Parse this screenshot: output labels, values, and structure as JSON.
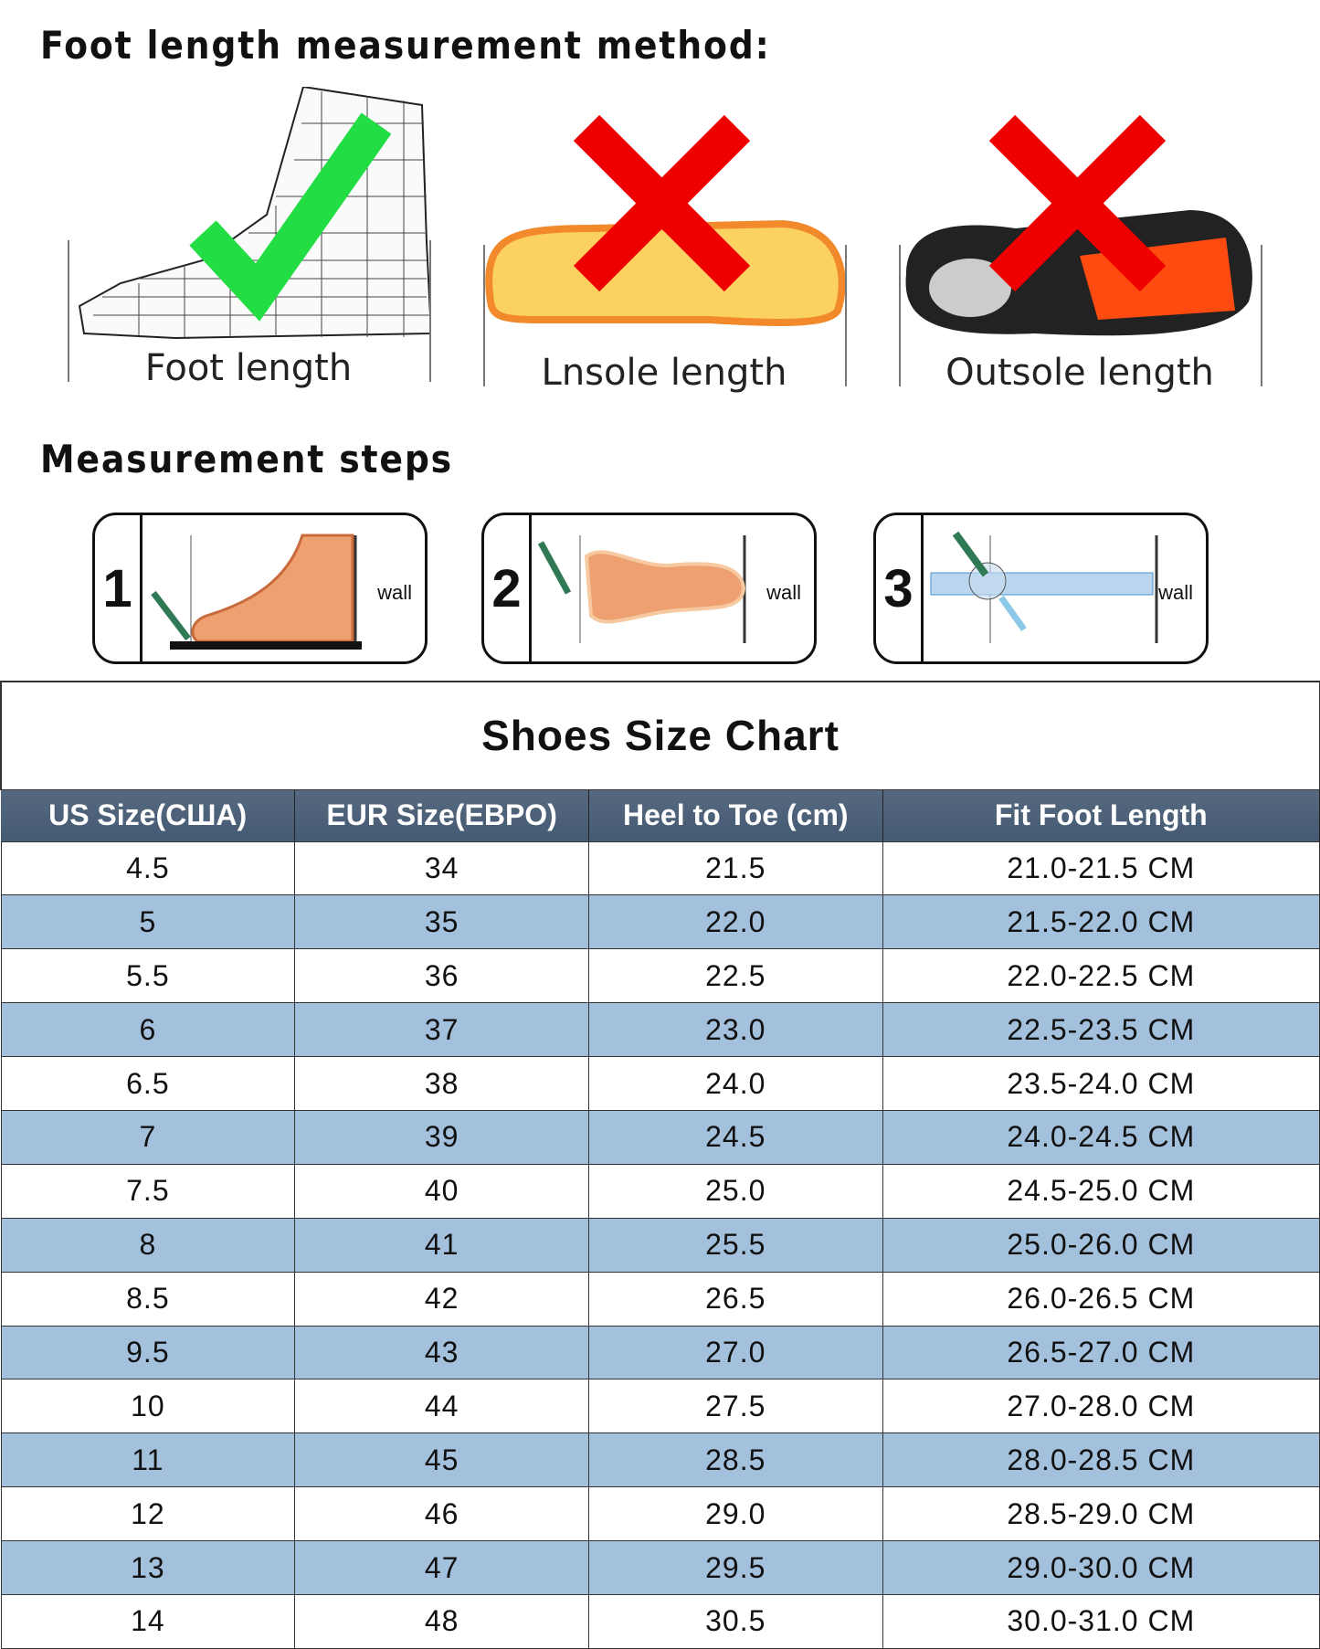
{
  "method_title": "Foot length measurement method:",
  "methods": [
    {
      "label": "Foot length",
      "mark": "check-icon",
      "color": "#22dd44"
    },
    {
      "label": "Lnsole length",
      "mark": "cross-icon",
      "color": "#ee0000"
    },
    {
      "label": "Outsole length",
      "mark": "cross-icon",
      "color": "#ee0000"
    }
  ],
  "steps_title": "Measurement steps",
  "steps": [
    {
      "num": "1",
      "wall": "wall"
    },
    {
      "num": "2",
      "wall": "wall"
    },
    {
      "num": "3",
      "wall": "wall"
    }
  ],
  "table": {
    "title": "Shoes Size Chart",
    "headers": [
      "US Size(СШA)",
      "EUR Size(EBPO)",
      "Heel to Toe (cm)",
      "Fit Foot Length"
    ],
    "rows": [
      [
        "4.5",
        "34",
        "21.5",
        "21.0-21.5 CM"
      ],
      [
        "5",
        "35",
        "22.0",
        "21.5-22.0 CM"
      ],
      [
        "5.5",
        "36",
        "22.5",
        "22.0-22.5 CM"
      ],
      [
        "6",
        "37",
        "23.0",
        "22.5-23.5 CM"
      ],
      [
        "6.5",
        "38",
        "24.0",
        "23.5-24.0 CM"
      ],
      [
        "7",
        "39",
        "24.5",
        "24.0-24.5 CM"
      ],
      [
        "7.5",
        "40",
        "25.0",
        "24.5-25.0 CM"
      ],
      [
        "8",
        "41",
        "25.5",
        "25.0-26.0 CM"
      ],
      [
        "8.5",
        "42",
        "26.5",
        "26.0-26.5 CM"
      ],
      [
        "9.5",
        "43",
        "27.0",
        "26.5-27.0 CM"
      ],
      [
        "10",
        "44",
        "27.5",
        "27.0-28.0 CM"
      ],
      [
        "11",
        "45",
        "28.5",
        "28.0-28.5 CM"
      ],
      [
        "12",
        "46",
        "29.0",
        "28.5-29.0 CM"
      ],
      [
        "13",
        "47",
        "29.5",
        "29.0-30.0 CM"
      ],
      [
        "14",
        "48",
        "30.5",
        "30.0-31.0 CM"
      ]
    ]
  }
}
